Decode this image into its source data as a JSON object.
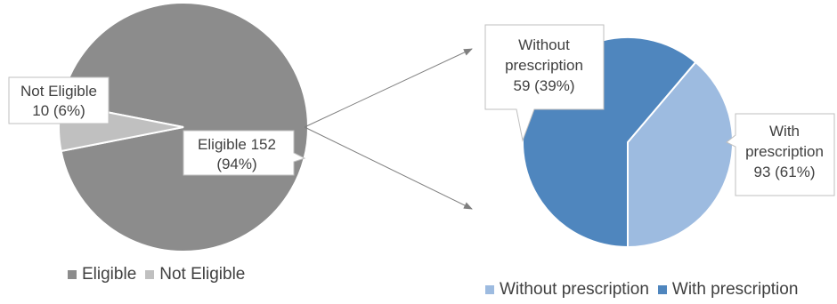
{
  "chart_data": [
    {
      "type": "pie",
      "title": "",
      "categories": [
        "Eligible",
        "Not Eligible"
      ],
      "values": [
        152,
        10
      ],
      "percent": [
        94,
        6
      ],
      "colors": [
        "#8c8c8c",
        "#c0c0c0"
      ],
      "data_labels": [
        {
          "line1": "Eligible  152",
          "line2": "(94%)"
        },
        {
          "line1": "Not Eligible",
          "line2": "10  (6%)"
        }
      ],
      "legend": [
        "Eligible",
        "Not Eligible"
      ],
      "legend_position": "bottom"
    },
    {
      "type": "pie",
      "title": "",
      "categories": [
        "Without prescription",
        "With prescription"
      ],
      "values": [
        59,
        93
      ],
      "percent": [
        39,
        61
      ],
      "colors": [
        "#9dbbe0",
        "#4f86be"
      ],
      "data_labels": [
        {
          "line1": "Without",
          "line2": "prescription",
          "line3": "59  (39%)"
        },
        {
          "line1": "With",
          "line2": "prescription",
          "line3": "93 (61%)"
        }
      ],
      "legend": [
        "Without prescription",
        "With prescription"
      ],
      "legend_position": "bottom"
    }
  ]
}
